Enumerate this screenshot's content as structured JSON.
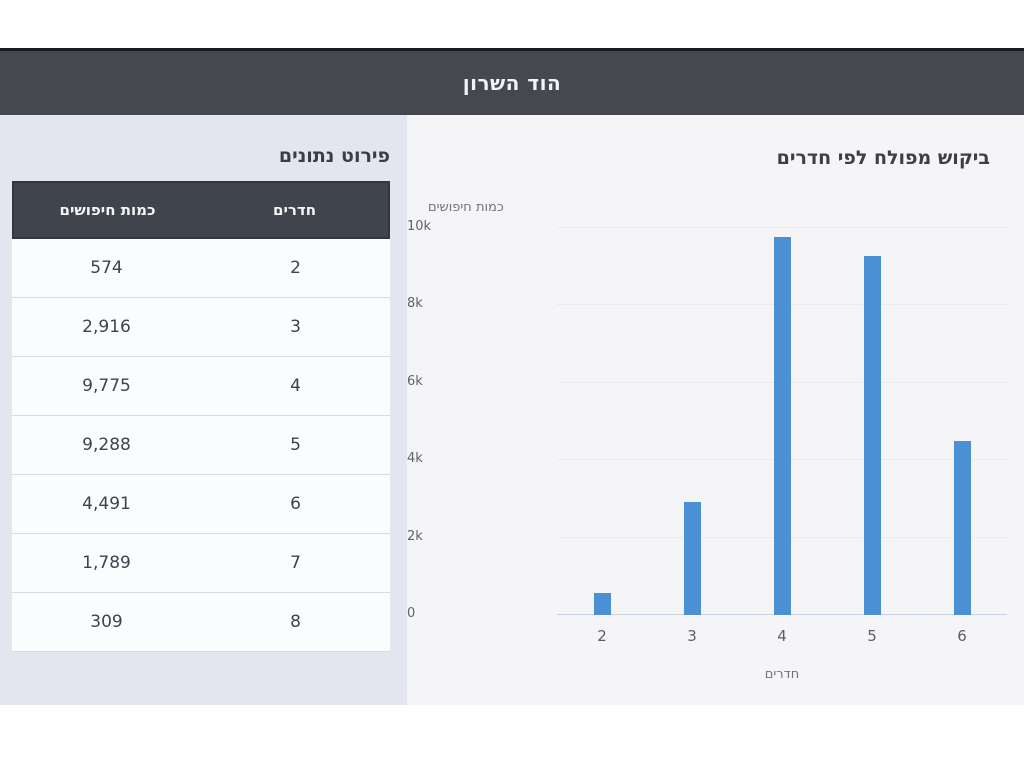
{
  "header": {
    "title": "הוד השרון"
  },
  "table_panel": {
    "title": "פירוט נתונים",
    "columns": [
      {
        "label": "חדרים"
      },
      {
        "label": "כמות חיפושים"
      }
    ],
    "rows": [
      {
        "rooms": "2",
        "searches": "574"
      },
      {
        "rooms": "3",
        "searches": "2,916"
      },
      {
        "rooms": "4",
        "searches": "9,775"
      },
      {
        "rooms": "5",
        "searches": "9,288"
      },
      {
        "rooms": "6",
        "searches": "4,491"
      },
      {
        "rooms": "7",
        "searches": "1,789"
      },
      {
        "rooms": "8",
        "searches": "309"
      }
    ]
  },
  "chart_data": {
    "type": "bar",
    "title": "ביקוש מפולח לפי חדרים",
    "categories": [
      "2",
      "3",
      "4",
      "5",
      "6"
    ],
    "values": [
      574,
      2916,
      9775,
      9288,
      4491
    ],
    "xlabel": "חדרים",
    "ylabel": "כמות חיפושים",
    "ylim": [
      0,
      10000
    ],
    "yticks": [
      "0",
      "2k",
      "4k",
      "6k",
      "8k",
      "10k"
    ],
    "grid": true,
    "legend_position": "none",
    "bar_color": "#4a90d2"
  },
  "colors": {
    "accent": "#4a90d2",
    "header_bg": "#45494f",
    "table_header_bg": "#3f444d",
    "left_panel_bg": "#e3e6ee",
    "right_panel_bg": "#f5f5f7"
  }
}
